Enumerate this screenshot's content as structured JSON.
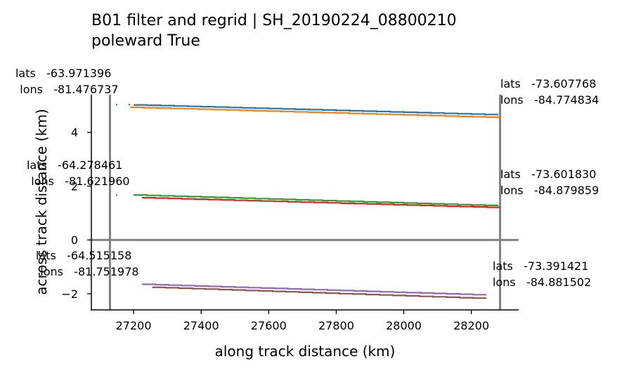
{
  "chart_data": {
    "type": "line",
    "title_lines": [
      "B01 filter and regrid | SH_20190224_08800210",
      "poleward True"
    ],
    "xlabel": "along track distance (km)",
    "ylabel": "across track distance (km)",
    "xlim": [
      27075,
      28340
    ],
    "ylim": [
      -2.6,
      5.4
    ],
    "xticks": [
      27200,
      27400,
      27600,
      27800,
      28000,
      28200
    ],
    "yticks": [
      -2,
      0,
      2,
      4
    ],
    "grid": false,
    "hlines": [
      {
        "y": 0,
        "color": "#808080"
      }
    ],
    "vlines": [
      {
        "x": 27130,
        "color": "#808080"
      },
      {
        "x": 28285,
        "color": "#808080"
      }
    ],
    "series": [
      {
        "name": "beam1",
        "color": "#1f77b4",
        "segments": [
          [
            27148,
            27152,
            5.03
          ],
          [
            27185,
            27190,
            5.03
          ],
          [
            27200,
            28280,
            5.02,
            4.65
          ]
        ]
      },
      {
        "name": "beam2",
        "color": "#ff7f0e",
        "segments": [
          [
            27190,
            28285,
            4.93,
            4.55
          ]
        ]
      },
      {
        "name": "beam3",
        "color": "#2ca02c",
        "segments": [
          [
            27148,
            27152,
            1.67
          ],
          [
            27200,
            28280,
            1.67,
            1.27
          ]
        ]
      },
      {
        "name": "beam4",
        "color": "#d62728",
        "segments": [
          [
            27225,
            28285,
            1.57,
            1.2
          ]
        ]
      },
      {
        "name": "beam5",
        "color": "#9467bd",
        "segments": [
          [
            27225,
            28245,
            -1.65,
            -2.05
          ]
        ]
      },
      {
        "name": "beam6",
        "color": "#8c564b",
        "segments": [
          [
            27255,
            28245,
            -1.76,
            -2.18
          ]
        ]
      }
    ],
    "annotations": [
      {
        "id": "ann-top-left",
        "lines": [
          "lats   -63.971396",
          "lons   -81.476737"
        ]
      },
      {
        "id": "ann-mid-left",
        "lines": [
          "lats   -64.278461",
          "lons   -81.621960"
        ]
      },
      {
        "id": "ann-bot-left",
        "lines": [
          "lats   -64.515158",
          "lons   -81.751978"
        ]
      },
      {
        "id": "ann-top-right",
        "lines": [
          "lats   -73.607768",
          "lons   -84.774834"
        ]
      },
      {
        "id": "ann-mid-right",
        "lines": [
          "lats   -73.601830",
          "lons   -84.879859"
        ]
      },
      {
        "id": "ann-bot-right",
        "lines": [
          "lats   -73.391421",
          "lons   -84.881502"
        ]
      }
    ]
  }
}
